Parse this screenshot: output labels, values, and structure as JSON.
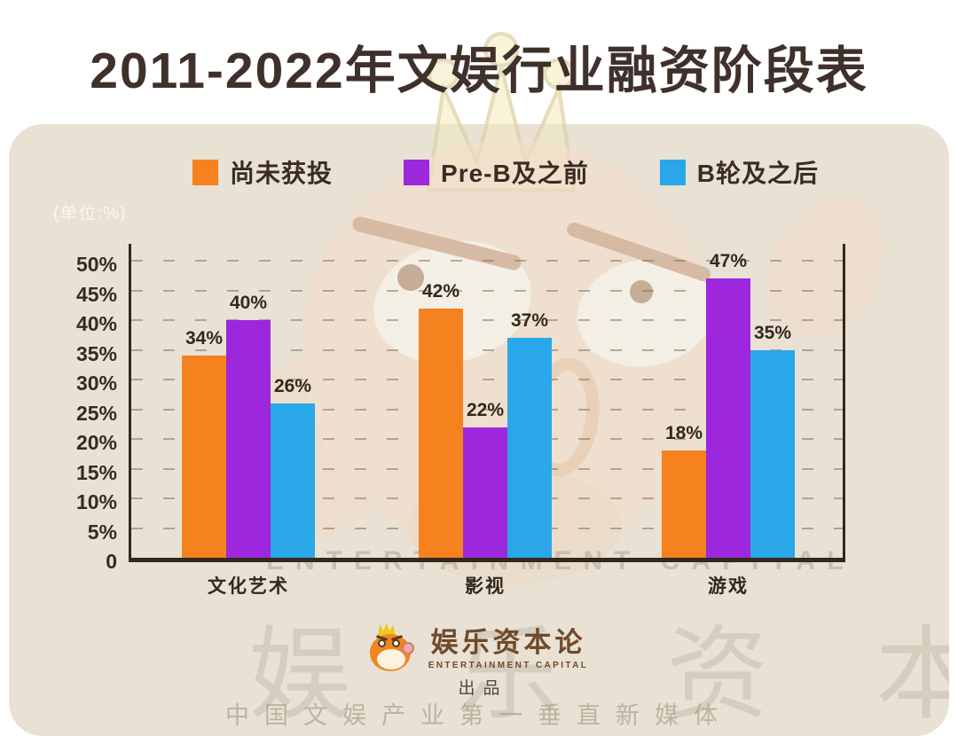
{
  "title": "2011-2022年文娱行业融资阶段表",
  "unit_label": "(单位:%)",
  "legend": [
    {
      "label": "尚未获投",
      "color": "#F5821E"
    },
    {
      "label": "Pre-B及之前",
      "color": "#9C27DC"
    },
    {
      "label": "B轮及之后",
      "color": "#2AA7E9"
    }
  ],
  "chart_data": {
    "type": "bar",
    "title": "2011-2022年文娱行业融资阶段表",
    "unit": "%",
    "categories": [
      "文化艺术",
      "影视",
      "游戏"
    ],
    "series": [
      {
        "name": "尚未获投",
        "color": "#F5821E",
        "values": [
          34,
          42,
          18
        ]
      },
      {
        "name": "Pre-B及之前",
        "color": "#9C27DC",
        "values": [
          40,
          22,
          47
        ]
      },
      {
        "name": "B轮及之后",
        "color": "#2AA7E9",
        "values": [
          26,
          37,
          35
        ]
      }
    ],
    "ylim": [
      0,
      50
    ],
    "ytick_step": 5,
    "ytick_labels": [
      "0",
      "5%",
      "10%",
      "15%",
      "20%",
      "25%",
      "30%",
      "35%",
      "40%",
      "45%",
      "50%"
    ],
    "grid": "dashed-horizontal",
    "legend_position": "top",
    "value_labels": "above-bars"
  },
  "watermarks": {
    "entertainment_capital": "ENTERTAINMENT CAPITAL",
    "brand_hanzi": "娱 乐 资 本 论",
    "tagline": "中国文娱产业第一垂直新媒体"
  },
  "footer": {
    "brand_name": "娱乐资本论",
    "brand_sub": "ENTERTAINMENT CAPITAL",
    "produced_by": "出品"
  },
  "colors": {
    "accent_orange": "#F5821E",
    "accent_purple": "#9C27DC",
    "accent_blue": "#2AA7E9",
    "title_text": "#40302B",
    "axis_text": "#372A1F",
    "card_bg": "#E8E1D4",
    "page_bg": "#FFFFFF"
  }
}
